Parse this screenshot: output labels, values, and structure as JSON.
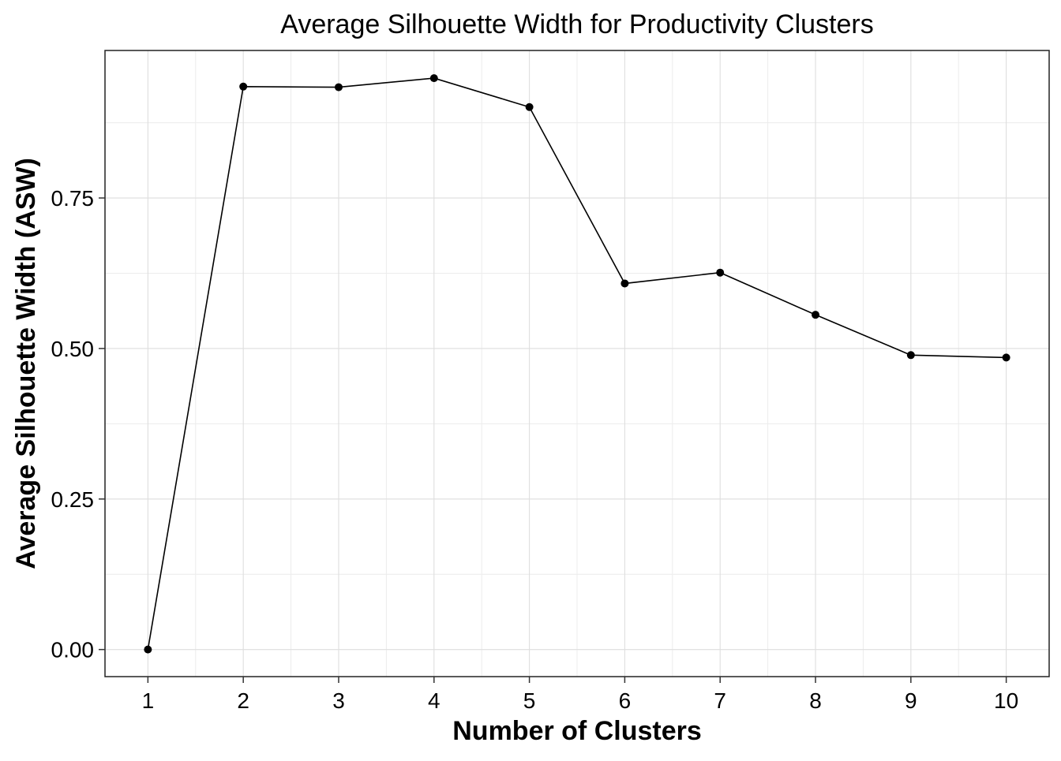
{
  "chart_data": {
    "type": "line",
    "title": "Average Silhouette Width for Productivity Clusters",
    "xlabel": "Number of Clusters",
    "ylabel": "Average Silhouette Width (ASW)",
    "x": [
      1,
      2,
      3,
      4,
      5,
      6,
      7,
      8,
      9,
      10
    ],
    "x_tick_labels": [
      "1",
      "2",
      "3",
      "4",
      "5",
      "6",
      "7",
      "8",
      "9",
      "10"
    ],
    "y_tick_values": [
      0,
      0.25,
      0.5,
      0.75
    ],
    "y_tick_labels": [
      "0.00",
      "0.25",
      "0.50",
      "0.75"
    ],
    "series": [
      {
        "values": [
          0.0,
          0.935,
          0.934,
          0.949,
          0.901,
          0.608,
          0.626,
          0.556,
          0.489,
          0.485
        ]
      }
    ],
    "xlim": [
      0.55,
      10.45
    ],
    "ylim": [
      -0.045,
      0.995
    ],
    "grid": true,
    "legend": "none",
    "colors": {
      "line": "#000000",
      "points": "#000000",
      "grid": "#dedede",
      "background": "#ffffff"
    }
  }
}
